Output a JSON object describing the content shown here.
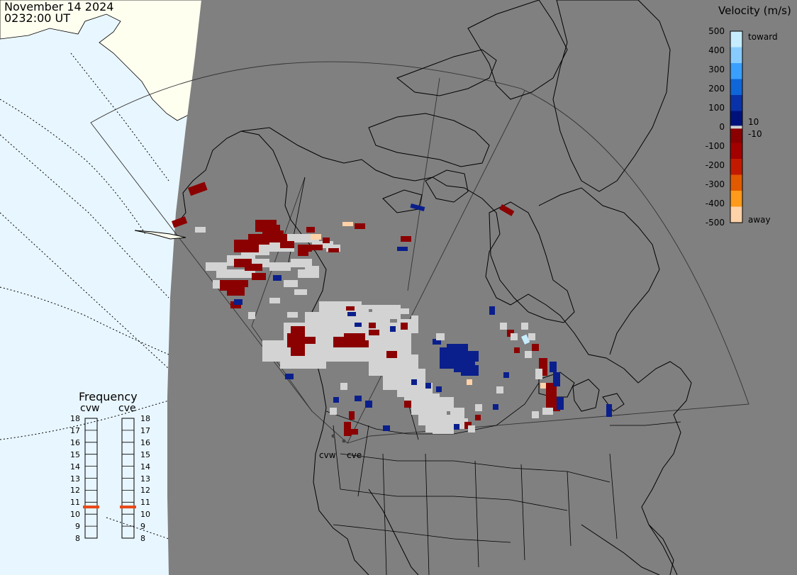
{
  "header": {
    "date": "November 14 2024",
    "time": "0232:00 UT"
  },
  "velocity_scale": {
    "title": "Velocity (m/s)",
    "ticks": [
      "500",
      "400",
      "300",
      "200",
      "100",
      "0",
      "-100",
      "-200",
      "-300",
      "-400",
      "-500"
    ],
    "near_zero": [
      "10",
      "-10"
    ],
    "toward_label": "toward",
    "away_label": "away",
    "colors": [
      "#c6ecff",
      "#88ccff",
      "#3aa0ff",
      "#0f66d9",
      "#0a32a8",
      "#00127a",
      "#8a0000",
      "#a30000",
      "#c21a00",
      "#e25a00",
      "#ff9a1a",
      "#ffd2a8"
    ]
  },
  "frequency_panel": {
    "title": "Frequency",
    "radars": [
      "cvw",
      "cve"
    ],
    "levels": [
      "18",
      "17",
      "16",
      "15",
      "14",
      "13",
      "12",
      "11",
      "10",
      "9",
      "8"
    ],
    "cvw_frequency": 10.6,
    "cve_frequency": 10.6,
    "marker_color": "#e84818"
  },
  "site_labels": [
    "cvw",
    "cve"
  ],
  "colors": {
    "land_sunlit": "#fffff0",
    "ocean_sunlit": "#e8f6ff",
    "night_shade": "#808080",
    "ground_scatter": "#d3d3d3",
    "coastline": "#000000"
  }
}
